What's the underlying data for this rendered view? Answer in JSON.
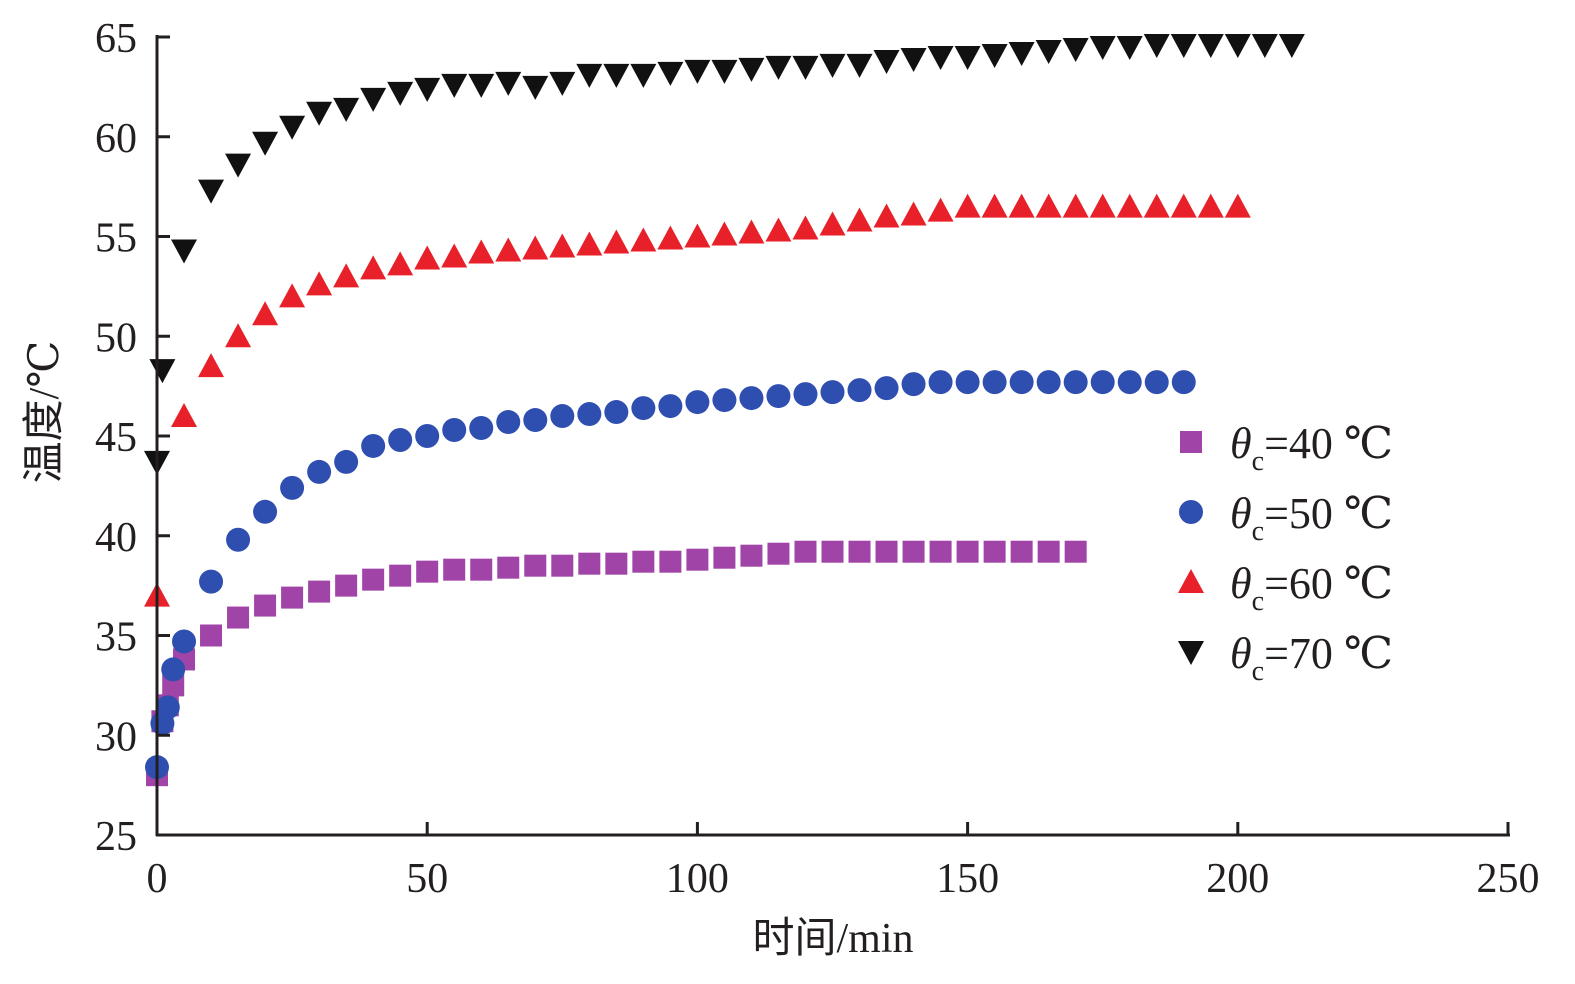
{
  "chart_data": {
    "type": "scatter",
    "title": "",
    "xlabel": "时间/min",
    "ylabel": "温度/℃",
    "xlim": [
      0,
      250
    ],
    "ylim": [
      25,
      65
    ],
    "xticks": [
      "0",
      "50",
      "100",
      "150",
      "200",
      "250"
    ],
    "yticks": [
      "25",
      "30",
      "35",
      "40",
      "45",
      "50",
      "55",
      "60",
      "65"
    ],
    "grid": false,
    "legend_position": "right",
    "series": [
      {
        "name": "θc=40 ℃",
        "label_sym": "θ",
        "label_sub": "c",
        "label_rest": "=40 ℃",
        "marker": "square",
        "color": "#a044a8",
        "x": [
          0,
          1,
          2,
          3,
          5,
          10,
          15,
          20,
          25,
          30,
          35,
          40,
          45,
          50,
          55,
          60,
          65,
          70,
          75,
          80,
          85,
          90,
          95,
          100,
          105,
          110,
          115,
          120,
          125,
          130,
          135,
          140,
          145,
          150,
          155,
          160,
          165,
          170
        ],
        "y": [
          28,
          30.7,
          31.5,
          32.5,
          33.8,
          35,
          35.9,
          36.5,
          36.9,
          37.2,
          37.5,
          37.8,
          38,
          38.2,
          38.3,
          38.3,
          38.4,
          38.5,
          38.5,
          38.6,
          38.6,
          38.7,
          38.7,
          38.8,
          38.9,
          39,
          39.1,
          39.2,
          39.2,
          39.2,
          39.2,
          39.2,
          39.2,
          39.2,
          39.2,
          39.2,
          39.2,
          39.2
        ]
      },
      {
        "name": "θc=50 ℃",
        "label_sym": "θ",
        "label_sub": "c",
        "label_rest": "=50 ℃",
        "marker": "circle",
        "color": "#2f4fb0",
        "x": [
          0,
          1,
          2,
          3,
          5,
          10,
          15,
          20,
          25,
          30,
          35,
          40,
          45,
          50,
          55,
          60,
          65,
          70,
          75,
          80,
          85,
          90,
          95,
          100,
          105,
          110,
          115,
          120,
          125,
          130,
          135,
          140,
          145,
          150,
          155,
          160,
          165,
          170,
          175,
          180,
          185,
          190
        ],
        "y": [
          28.4,
          30.6,
          31.4,
          33.3,
          34.7,
          37.7,
          39.8,
          41.2,
          42.4,
          43.2,
          43.7,
          44.5,
          44.8,
          45,
          45.3,
          45.4,
          45.7,
          45.8,
          46,
          46.1,
          46.2,
          46.4,
          46.5,
          46.7,
          46.8,
          46.9,
          47,
          47.1,
          47.2,
          47.3,
          47.4,
          47.6,
          47.7,
          47.7,
          47.7,
          47.7,
          47.7,
          47.7,
          47.7,
          47.7,
          47.7,
          47.7
        ]
      },
      {
        "name": "θc=60 ℃",
        "label_sym": "θ",
        "label_sub": "c",
        "label_rest": "=60 ℃",
        "marker": "triangle-up",
        "color": "#e8202a",
        "x": [
          0,
          5,
          10,
          15,
          20,
          25,
          30,
          35,
          40,
          45,
          50,
          55,
          60,
          65,
          70,
          75,
          80,
          85,
          90,
          95,
          100,
          105,
          110,
          115,
          120,
          125,
          130,
          135,
          140,
          145,
          150,
          155,
          160,
          165,
          170,
          175,
          180,
          185,
          190,
          195,
          200
        ],
        "y": [
          37,
          46,
          48.5,
          50,
          51.1,
          52,
          52.6,
          53,
          53.4,
          53.6,
          53.9,
          54,
          54.2,
          54.3,
          54.4,
          54.5,
          54.6,
          54.7,
          54.8,
          54.9,
          55,
          55.1,
          55.2,
          55.3,
          55.4,
          55.6,
          55.8,
          56,
          56.1,
          56.3,
          56.5,
          56.5,
          56.5,
          56.5,
          56.5,
          56.5,
          56.5,
          56.5,
          56.5,
          56.5,
          56.5
        ]
      },
      {
        "name": "θc=70 ℃",
        "label_sym": "θ",
        "label_sub": "c",
        "label_rest": "=70 ℃",
        "marker": "triangle-down",
        "color": "#111111",
        "x": [
          0,
          1,
          5,
          10,
          15,
          20,
          25,
          30,
          35,
          40,
          45,
          50,
          55,
          60,
          65,
          70,
          75,
          80,
          85,
          90,
          95,
          100,
          105,
          110,
          115,
          120,
          125,
          130,
          135,
          140,
          145,
          150,
          155,
          160,
          165,
          170,
          175,
          180,
          185,
          190,
          195,
          200,
          205,
          210
        ],
        "y": [
          43.7,
          48.3,
          54.3,
          57.3,
          58.6,
          59.7,
          60.5,
          61.2,
          61.4,
          61.9,
          62.2,
          62.4,
          62.6,
          62.6,
          62.7,
          62.5,
          62.7,
          63.1,
          63.1,
          63.1,
          63.2,
          63.3,
          63.3,
          63.4,
          63.5,
          63.5,
          63.6,
          63.6,
          63.8,
          63.9,
          64,
          64,
          64.1,
          64.2,
          64.3,
          64.4,
          64.5,
          64.5,
          64.6,
          64.6,
          64.6,
          64.6,
          64.6,
          64.6
        ]
      }
    ]
  }
}
